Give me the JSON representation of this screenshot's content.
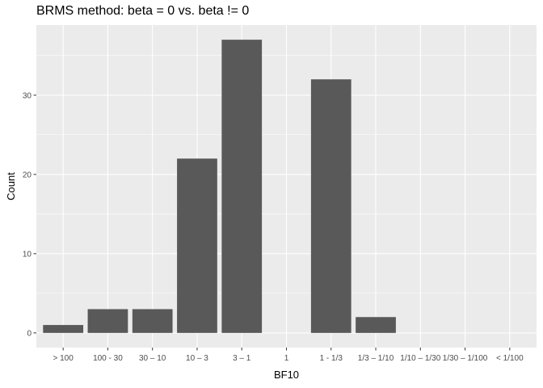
{
  "chart_data": {
    "type": "bar",
    "title": "BRMS method: beta = 0 vs. beta != 0",
    "xlabel": "BF10",
    "ylabel": "Count",
    "categories": [
      "> 100",
      "100 - 30",
      "30 – 10",
      "10 – 3",
      "3 – 1",
      "1",
      "1 - 1/3",
      "1/3 – 1/10",
      "1/10 – 1/30",
      "1/30 – 1/100",
      "< 1/100"
    ],
    "values": [
      1,
      3,
      3,
      22,
      37,
      0,
      32,
      2,
      0,
      0,
      0
    ],
    "ylim": [
      -1.85,
      38.85
    ],
    "yticks": [
      0,
      10,
      20,
      30
    ],
    "grid": true,
    "colors": {
      "bar": "#595959",
      "panel": "#ebebeb",
      "grid": "#ffffff"
    }
  }
}
